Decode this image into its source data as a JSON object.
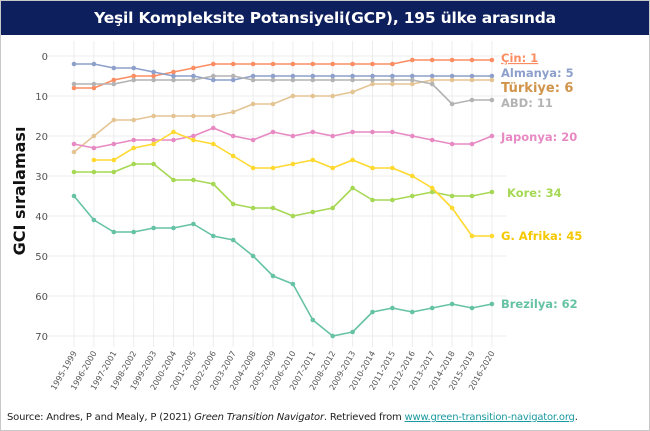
{
  "chart_data": {
    "type": "line",
    "title": "Yeşil Kompleksite Potansiyeli(GCP), 195 ülke arasında",
    "xlabel": "",
    "ylabel": "GCI sıralaması",
    "ylim": [
      0,
      70
    ],
    "y_reversed": true,
    "yticks": [
      0,
      10,
      20,
      30,
      40,
      50,
      60,
      70
    ],
    "grid": true,
    "legend": "direct labels at line ends (right)",
    "categories": [
      "1995-1999",
      "1996-2000",
      "1997-2001",
      "1998-2002",
      "1999-2003",
      "2000-2004",
      "2001-2005",
      "2002-2006",
      "2003-2007",
      "2004-2008",
      "2005-2009",
      "2006-2010",
      "2007-2011",
      "2008-2012",
      "2009-2013",
      "2010-2014",
      "2011-2015",
      "2012-2016",
      "2013-2017",
      "2014-2018",
      "2015-2019",
      "2016-2020"
    ],
    "series": [
      {
        "name": "Çin",
        "label": "Çin: 1",
        "color": "#fc8d62",
        "label_color": "#fc8d62",
        "values": [
          8,
          8,
          6,
          5,
          5,
          4,
          3,
          2,
          2,
          2,
          2,
          2,
          2,
          2,
          2,
          2,
          2,
          1,
          1,
          1,
          1,
          1
        ]
      },
      {
        "name": "Almanya",
        "label": "Almanya: 5",
        "color": "#8da0cb",
        "label_color": "#8da0cb",
        "values": [
          2,
          2,
          3,
          3,
          4,
          5,
          5,
          6,
          6,
          5,
          5,
          5,
          5,
          5,
          5,
          5,
          5,
          5,
          5,
          5,
          5,
          5
        ]
      },
      {
        "name": "Türkiye",
        "label": "Türkiye: 6",
        "color": "#e5c494",
        "label_color": "#d0954a",
        "values": [
          24,
          20,
          16,
          16,
          15,
          15,
          15,
          15,
          14,
          12,
          12,
          10,
          10,
          10,
          9,
          7,
          7,
          7,
          6,
          6,
          6,
          6
        ]
      },
      {
        "name": "ABD",
        "label": "ABD: 11",
        "color": "#b3b3b3",
        "label_color": "#b3b3b3",
        "values": [
          7,
          7,
          7,
          6,
          6,
          6,
          6,
          5,
          5,
          6,
          6,
          6,
          6,
          6,
          6,
          6,
          6,
          6,
          7,
          12,
          11,
          11
        ]
      },
      {
        "name": "Japonya",
        "label": "Japonya: 20",
        "color": "#e78ac3",
        "label_color": "#e78ac3",
        "values": [
          22,
          23,
          22,
          21,
          21,
          21,
          20,
          18,
          20,
          21,
          19,
          20,
          19,
          20,
          19,
          19,
          19,
          20,
          21,
          22,
          22,
          20
        ]
      },
      {
        "name": "Kore",
        "label": "Kore: 34",
        "color": "#a6d854",
        "label_color": "#a6d854",
        "values": [
          29,
          29,
          29,
          27,
          27,
          31,
          31,
          32,
          37,
          38,
          38,
          40,
          39,
          38,
          33,
          36,
          36,
          35,
          34,
          35,
          35,
          34
        ]
      },
      {
        "name": "G. Afrika",
        "label": "G. Afrika: 45",
        "color": "#ffd92f",
        "label_color": "#f5c800",
        "values": [
          null,
          26,
          26,
          23,
          22,
          19,
          21,
          22,
          25,
          28,
          28,
          27,
          26,
          28,
          26,
          28,
          28,
          30,
          33,
          38,
          45,
          45
        ]
      },
      {
        "name": "Brezilya",
        "label": "Brezilya: 62",
        "color": "#66c2a5",
        "label_color": "#66c2a5",
        "values": [
          35,
          41,
          44,
          44,
          43,
          43,
          42,
          45,
          46,
          50,
          55,
          57,
          66,
          70,
          69,
          64,
          63,
          64,
          63,
          62,
          63,
          62
        ]
      }
    ]
  },
  "footer": {
    "prefix": "Source: Andres, P and Mealy, P (2021) ",
    "work": "Green Transition Navigator",
    "middle": ". Retrieved from ",
    "link": "www.green-transition-navigator.org",
    "suffix": "."
  }
}
